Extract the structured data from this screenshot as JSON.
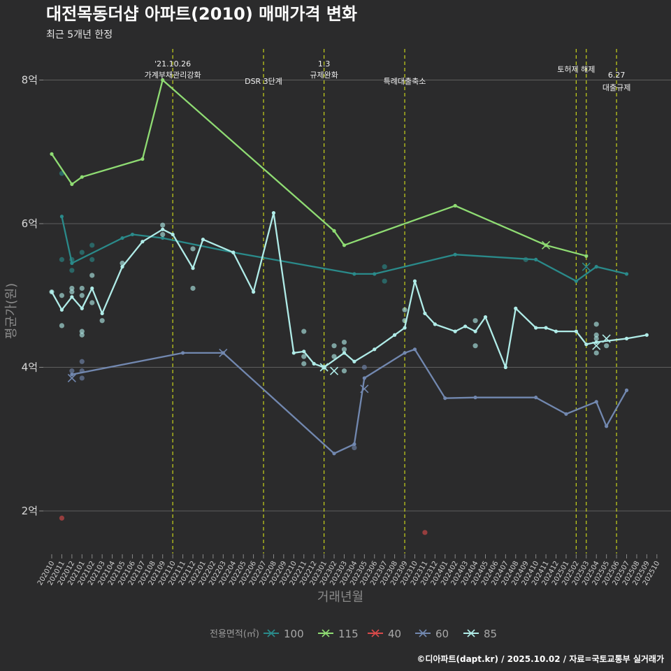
{
  "chart_data": {
    "type": "line",
    "title": "대전목동더샵 아파트(2010) 매매가격 변화",
    "subtitle": "최근 5개년 한정",
    "xlabel": "거래년월",
    "ylabel": "평균가(원)",
    "caption": "©디아파트(dapt.kr) / 2025.10.02 / 자료=국토교통부 실거래가",
    "legend_title": "전용면적(㎡)",
    "legend_position": "bottom",
    "grid": true,
    "ylim": [
      1.4,
      8.5
    ],
    "y_ticks": [
      {
        "value": 2,
        "label": "2억"
      },
      {
        "value": 4,
        "label": "4억"
      },
      {
        "value": 6,
        "label": "6억"
      },
      {
        "value": 8,
        "label": "8억"
      }
    ],
    "x_categories": [
      "202010",
      "202011",
      "202012",
      "202101",
      "202102",
      "202103",
      "202104",
      "202105",
      "202106",
      "202107",
      "202108",
      "202109",
      "202110",
      "202111",
      "202112",
      "202201",
      "202202",
      "202203",
      "202204",
      "202205",
      "202206",
      "202207",
      "202208",
      "202209",
      "202210",
      "202211",
      "202212",
      "202301",
      "202302",
      "202303",
      "202304",
      "202305",
      "202306",
      "202307",
      "202308",
      "202309",
      "202310",
      "202311",
      "202312",
      "202401",
      "202402",
      "202403",
      "202404",
      "202405",
      "202406",
      "202407",
      "202408",
      "202409",
      "202410",
      "202411",
      "202412",
      "202501",
      "202502",
      "202503",
      "202504",
      "202505",
      "202506",
      "202507",
      "202508",
      "202509",
      "202510"
    ],
    "annotations": [
      {
        "x": "202110",
        "lines": [
          "'21.10.26",
          "가계부채관리강화"
        ]
      },
      {
        "x": "202207",
        "lines": [
          "DSR 3단계"
        ]
      },
      {
        "x": "202301",
        "lines": [
          "1.3",
          "규제완화"
        ]
      },
      {
        "x": "202309",
        "lines": [
          "특례대출축소"
        ]
      },
      {
        "x": "202502",
        "lines": [
          "토허제 해제"
        ]
      },
      {
        "x": "202503",
        "lines": []
      },
      {
        "x": "202506",
        "lines": [
          "6.27",
          "대출규제"
        ]
      }
    ],
    "series": [
      {
        "name": "100",
        "color": "#2a8a8a",
        "shape": "x",
        "points": [
          [
            "202011",
            6.1
          ],
          [
            "202012",
            5.45
          ],
          [
            "202105",
            5.8
          ],
          [
            "202106",
            5.85
          ],
          [
            "202109",
            5.8
          ],
          [
            "202204",
            5.6
          ],
          [
            "202304",
            5.3
          ],
          [
            "202306",
            5.3
          ],
          [
            "202402",
            5.57
          ],
          [
            "202410",
            5.5
          ],
          [
            "202502",
            5.2
          ],
          [
            "202504",
            5.4
          ],
          [
            "202507",
            5.3
          ]
        ],
        "dots": [
          [
            "202011",
            6.7
          ],
          [
            "202011",
            5.5
          ],
          [
            "202012",
            5.35
          ],
          [
            "202012",
            5.5
          ],
          [
            "202101",
            5.6
          ],
          [
            "202102",
            5.7
          ],
          [
            "202102",
            5.5
          ],
          [
            "202307",
            5.4
          ],
          [
            "202307",
            5.2
          ],
          [
            "202409",
            5.5
          ]
        ],
        "marks": [
          [
            "202503",
            5.4
          ]
        ]
      },
      {
        "name": "115",
        "color": "#8fdc73",
        "shape": "x",
        "points": [
          [
            "202010",
            6.97
          ],
          [
            "202012",
            6.55
          ],
          [
            "202101",
            6.65
          ],
          [
            "202107",
            6.9
          ],
          [
            "202109",
            8.0
          ],
          [
            "202302",
            5.9
          ],
          [
            "202303",
            5.7
          ],
          [
            "202402",
            6.25
          ],
          [
            "202411",
            5.7
          ],
          [
            "202503",
            5.55
          ]
        ],
        "dots": [],
        "marks": [
          [
            "202411",
            5.7
          ]
        ]
      },
      {
        "name": "40",
        "color": "#d94a4a",
        "shape": "x",
        "points": [],
        "dots": [
          [
            "202011",
            1.9
          ],
          [
            "202311",
            1.7
          ]
        ],
        "marks": []
      },
      {
        "name": "60",
        "color": "#7288b0",
        "shape": "x",
        "points": [
          [
            "202012",
            3.9
          ],
          [
            "202111",
            4.2
          ],
          [
            "202203",
            4.2
          ],
          [
            "202302",
            2.8
          ],
          [
            "202304",
            2.93
          ],
          [
            "202305",
            3.85
          ],
          [
            "202309",
            4.2
          ],
          [
            "202310",
            4.25
          ],
          [
            "202401",
            3.57
          ],
          [
            "202404",
            3.58
          ],
          [
            "202410",
            3.58
          ],
          [
            "202501",
            3.35
          ],
          [
            "202504",
            3.52
          ],
          [
            "202505",
            3.18
          ],
          [
            "202507",
            3.68
          ]
        ],
        "dots": [
          [
            "202012",
            3.95
          ],
          [
            "202101",
            4.08
          ],
          [
            "202101",
            3.95
          ],
          [
            "202101",
            3.85
          ],
          [
            "202304",
            2.88
          ],
          [
            "202305",
            4.0
          ]
        ],
        "marks": [
          [
            "202012",
            3.85
          ],
          [
            "202203",
            4.2
          ],
          [
            "202305",
            3.7
          ]
        ]
      },
      {
        "name": "85",
        "color": "#b0ece8",
        "shape": "x",
        "points": [
          [
            "202010",
            5.05
          ],
          [
            "202011",
            4.8
          ],
          [
            "202012",
            4.98
          ],
          [
            "202101",
            4.82
          ],
          [
            "202102",
            5.1
          ],
          [
            "202103",
            4.75
          ],
          [
            "202105",
            5.4
          ],
          [
            "202107",
            5.75
          ],
          [
            "202109",
            5.92
          ],
          [
            "202110",
            5.85
          ],
          [
            "202112",
            5.38
          ],
          [
            "202201",
            5.78
          ],
          [
            "202204",
            5.6
          ],
          [
            "202206",
            5.05
          ],
          [
            "202208",
            6.15
          ],
          [
            "202210",
            4.2
          ],
          [
            "202211",
            4.22
          ],
          [
            "202212",
            4.05
          ],
          [
            "202301",
            4.0
          ],
          [
            "202303",
            4.2
          ],
          [
            "202304",
            4.08
          ],
          [
            "202306",
            4.25
          ],
          [
            "202308",
            4.45
          ],
          [
            "202309",
            4.55
          ],
          [
            "202310",
            5.2
          ],
          [
            "202311",
            4.75
          ],
          [
            "202312",
            4.6
          ],
          [
            "202402",
            4.5
          ],
          [
            "202403",
            4.57
          ],
          [
            "202404",
            4.5
          ],
          [
            "202405",
            4.7
          ],
          [
            "202407",
            4.0
          ],
          [
            "202408",
            4.82
          ],
          [
            "202410",
            4.55
          ],
          [
            "202411",
            4.55
          ],
          [
            "202412",
            4.5
          ],
          [
            "202502",
            4.5
          ],
          [
            "202503",
            4.32
          ],
          [
            "202504",
            4.35
          ],
          [
            "202507",
            4.4
          ],
          [
            "202509",
            4.45
          ]
        ],
        "dots": [
          [
            "202010",
            5.05
          ],
          [
            "202011",
            5.0
          ],
          [
            "202011",
            4.58
          ],
          [
            "202012",
            5.1
          ],
          [
            "202012",
            5.05
          ],
          [
            "202101",
            5.1
          ],
          [
            "202101",
            5.0
          ],
          [
            "202101",
            4.5
          ],
          [
            "202101",
            4.45
          ],
          [
            "202102",
            4.9
          ],
          [
            "202102",
            5.28
          ],
          [
            "202103",
            4.65
          ],
          [
            "202105",
            5.45
          ],
          [
            "202109",
            5.98
          ],
          [
            "202109",
            5.85
          ],
          [
            "202112",
            5.65
          ],
          [
            "202112",
            5.1
          ],
          [
            "202211",
            4.5
          ],
          [
            "202211",
            4.15
          ],
          [
            "202211",
            4.05
          ],
          [
            "202301",
            4.0
          ],
          [
            "202302",
            4.3
          ],
          [
            "202302",
            4.15
          ],
          [
            "202303",
            4.35
          ],
          [
            "202303",
            4.25
          ],
          [
            "202303",
            3.95
          ],
          [
            "202309",
            4.8
          ],
          [
            "202309",
            4.65
          ],
          [
            "202404",
            4.65
          ],
          [
            "202404",
            4.3
          ],
          [
            "202504",
            4.6
          ],
          [
            "202504",
            4.45
          ],
          [
            "202504",
            4.2
          ],
          [
            "202504",
            4.4
          ],
          [
            "202505",
            4.3
          ]
        ],
        "marks": [
          [
            "202301",
            4.0
          ],
          [
            "202302",
            3.95
          ],
          [
            "202504",
            4.3
          ],
          [
            "202505",
            4.4
          ]
        ]
      }
    ]
  }
}
